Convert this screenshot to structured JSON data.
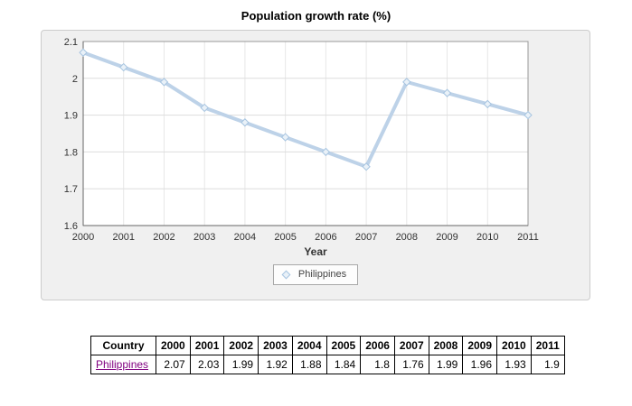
{
  "title": "Population growth rate (%)",
  "chart_data": {
    "type": "line",
    "title": "Population growth rate (%)",
    "xlabel": "Year",
    "ylabel": "",
    "x": [
      2000,
      2001,
      2002,
      2003,
      2004,
      2005,
      2006,
      2007,
      2008,
      2009,
      2010,
      2011
    ],
    "series": [
      {
        "name": "Philippines",
        "values": [
          2.07,
          2.03,
          1.99,
          1.92,
          1.88,
          1.84,
          1.8,
          1.76,
          1.99,
          1.96,
          1.93,
          1.9
        ]
      }
    ],
    "ylim": [
      1.6,
      2.1
    ],
    "yticks": [
      1.6,
      1.7,
      1.8,
      1.9,
      2,
      2.1
    ],
    "grid": true,
    "legend_position": "bottom"
  },
  "colors": {
    "series_line": "#bdd2e8",
    "marker_fill": "#e9f1f8",
    "marker_stroke": "#a6c4e0",
    "grid_line": "#dddddd",
    "plot_border": "#999999",
    "axis_line": "#666666",
    "link": "#800080"
  },
  "table": {
    "header": [
      "Country",
      "2000",
      "2001",
      "2002",
      "2003",
      "2004",
      "2005",
      "2006",
      "2007",
      "2008",
      "2009",
      "2010",
      "2011"
    ],
    "rows": [
      {
        "country": "Philippines",
        "values": [
          "2.07",
          "2.03",
          "1.99",
          "1.92",
          "1.88",
          "1.84",
          "1.8",
          "1.76",
          "1.99",
          "1.96",
          "1.93",
          "1.9"
        ]
      }
    ]
  }
}
